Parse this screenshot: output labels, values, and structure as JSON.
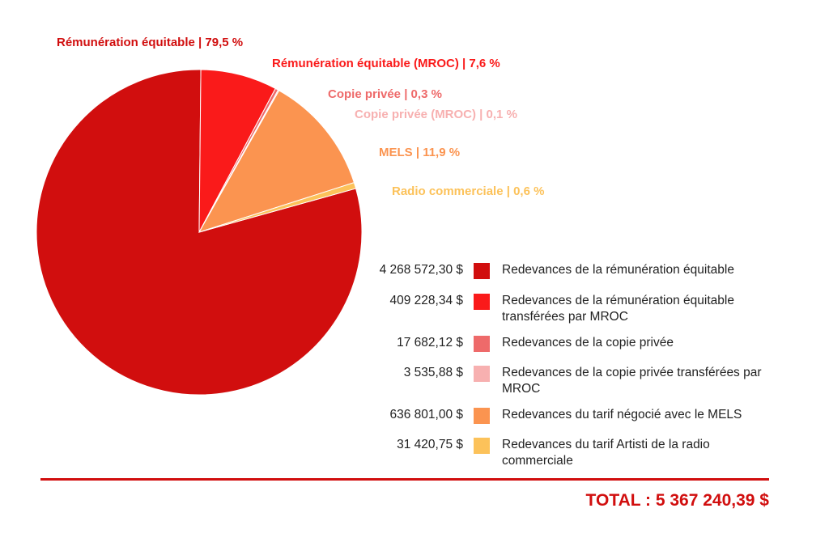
{
  "chart_data": {
    "type": "pie",
    "slices": [
      {
        "name": "Redevances de la rémunération équitable",
        "callout": "Rémunération équitable | 79,5 %",
        "percent": 79.5,
        "amount": "4 268 572,30 $",
        "color": "#d10e0e"
      },
      {
        "name": "Redevances de la rémunération équitable transférées par MROC",
        "callout": "Rémunération équitable (MROC) | 7,6 %",
        "percent": 7.6,
        "amount": "409 228,34 $",
        "color": "#fa1a1a"
      },
      {
        "name": "Redevances de la copie privée",
        "callout": "Copie privée | 0,3 %",
        "percent": 0.3,
        "amount": "17 682,12 $",
        "color": "#ee6a6a"
      },
      {
        "name": "Redevances de la copie privée transférées par MROC",
        "callout": "Copie privée (MROC) | 0,1 %",
        "percent": 0.1,
        "amount": "3 535,88 $",
        "color": "#f7b0b0"
      },
      {
        "name": "Redevances du tarif négocié avec le MELS",
        "callout": "MELS | 11,9 %",
        "percent": 11.9,
        "amount": "636 801,00 $",
        "color": "#fb9450"
      },
      {
        "name": "Redevances du tarif Artisti de la radio commerciale",
        "callout": "Radio commerciale | 0,6 %",
        "percent": 0.6,
        "amount": "31 420,75 $",
        "color": "#fcc25a"
      }
    ]
  },
  "total": "TOTAL : 5 367 240,39 $"
}
